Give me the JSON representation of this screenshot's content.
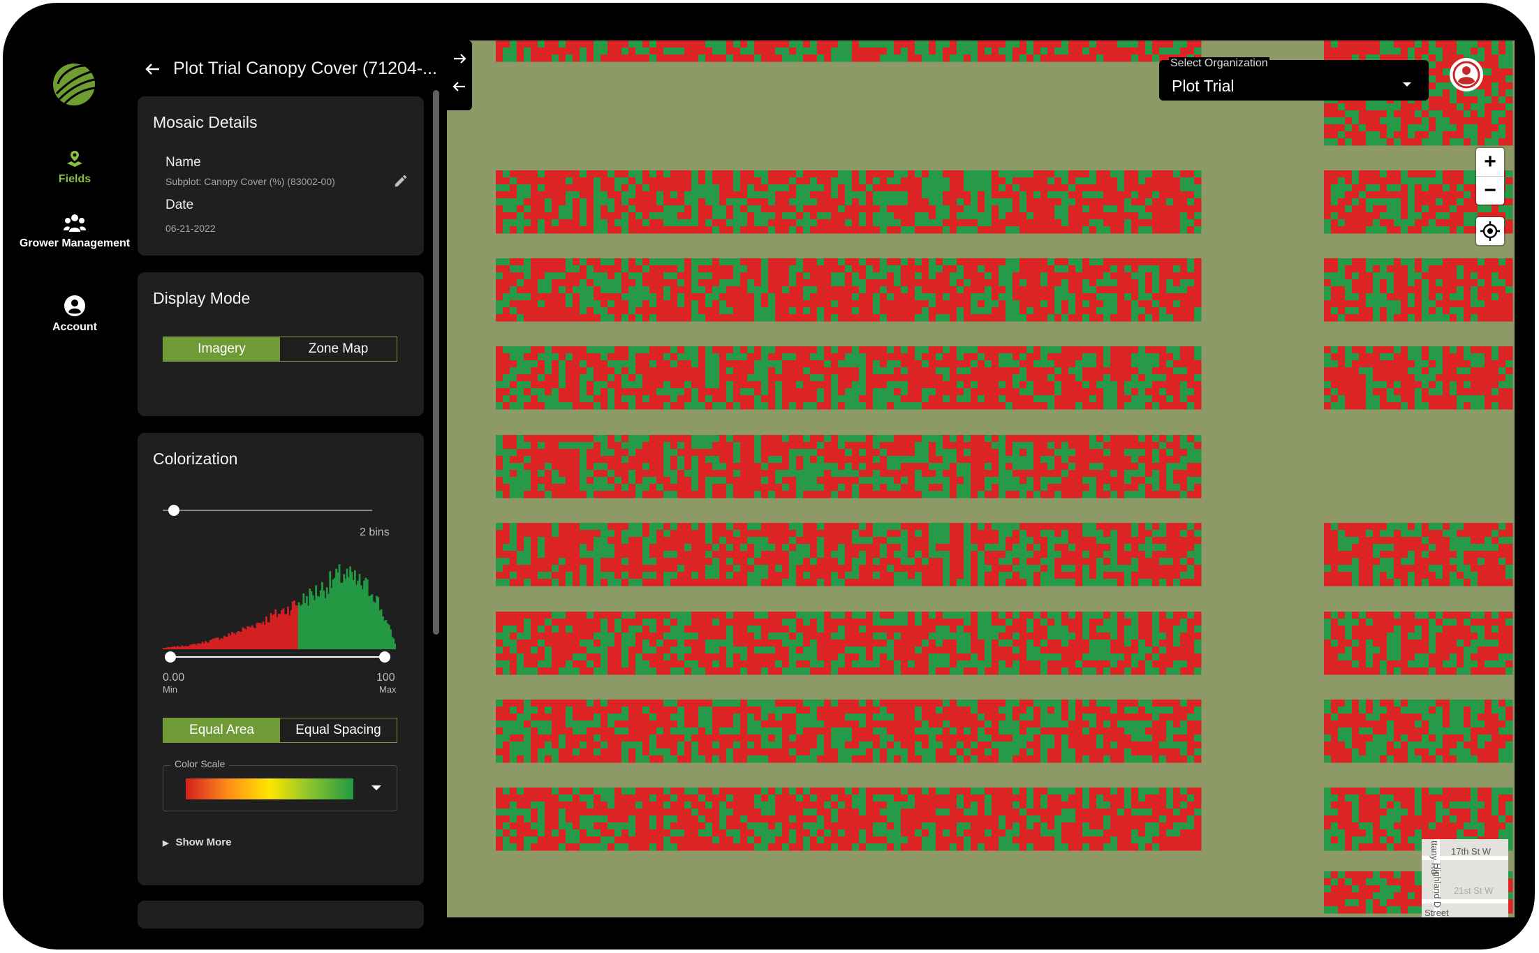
{
  "nav": {
    "items": [
      {
        "label": "Fields",
        "icon": "fields-icon",
        "active": true
      },
      {
        "label": "Grower Management",
        "icon": "grower-icon",
        "active": false
      },
      {
        "label": "Account",
        "icon": "account-icon",
        "active": false
      }
    ]
  },
  "panel": {
    "title": "Plot Trial Canopy Cover (71204-...",
    "mosaic": {
      "heading": "Mosaic Details",
      "name_label": "Name",
      "name_value": "Subplot: Canopy Cover (%) (83002-00)",
      "date_label": "Date",
      "date_value": "06-21-2022"
    },
    "display_mode": {
      "heading": "Display Mode",
      "options": [
        "Imagery",
        "Zone Map"
      ],
      "selected": "Imagery"
    },
    "colorization": {
      "heading": "Colorization",
      "bins_label": "2 bins",
      "bins": 2,
      "min_value": "0.00",
      "min_label": "Min",
      "max_value": "100",
      "max_label": "Max",
      "spacing_options": [
        "Equal Area",
        "Equal Spacing"
      ],
      "spacing_selected": "Equal Area",
      "color_scale_label": "Color Scale",
      "show_more": "Show More",
      "colors": {
        "low": "#d42020",
        "high": "#229942"
      }
    }
  },
  "map": {
    "organization_label": "Select Organization",
    "organization_value": "Plot Trial",
    "zoom_in": "+",
    "zoom_out": "−",
    "minimap": {
      "labels": [
        "17th St W",
        "Highland D",
        "ttany Rd",
        "21st St W",
        "Street"
      ]
    }
  },
  "colors": {
    "accent": "#8bbf3f",
    "button_on": "#6f9a36",
    "panel_bg": "#1f1f1f",
    "plot_red": "#dc2424",
    "plot_green": "#269a48",
    "field_bg": "#8d9967"
  }
}
